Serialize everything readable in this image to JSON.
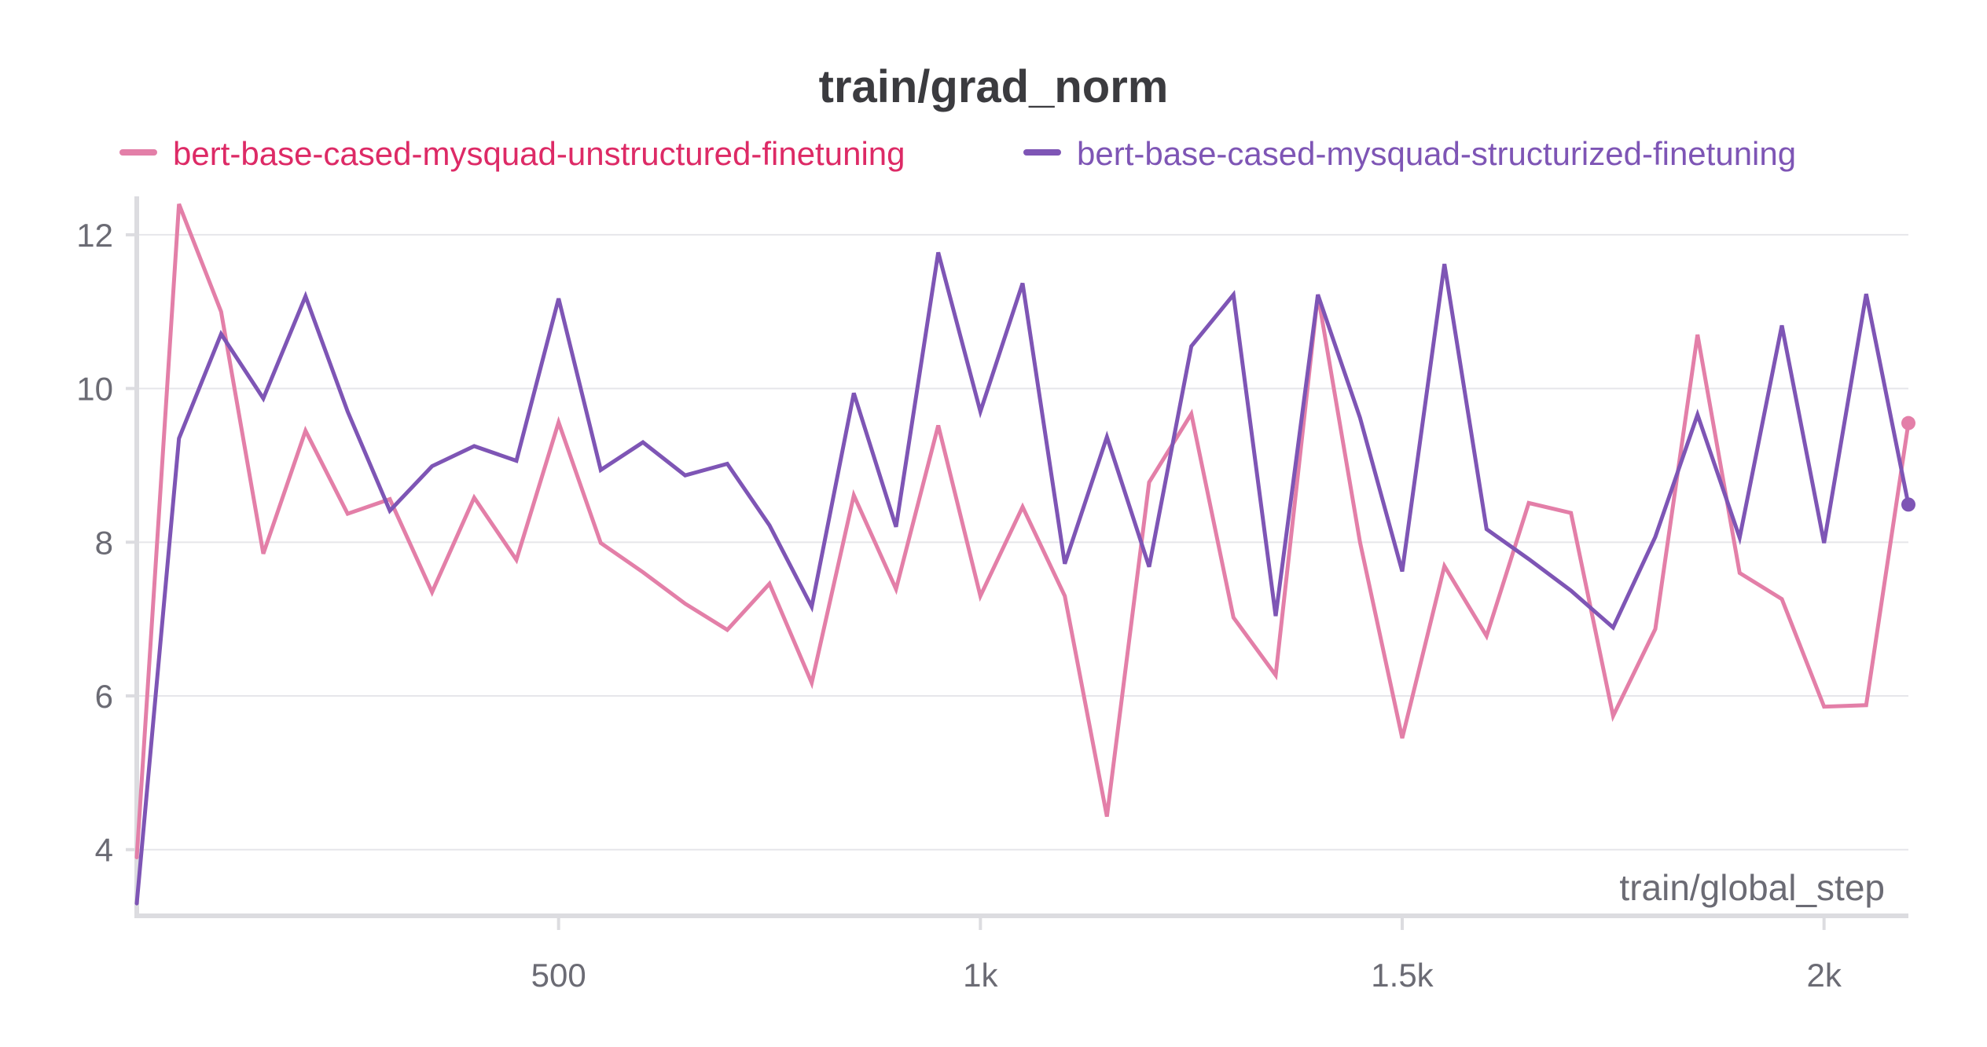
{
  "chart_data": {
    "type": "line",
    "title": "train/grad_norm",
    "xlabel": "train/global_step",
    "ylabel": "",
    "xlim": [
      0,
      2100
    ],
    "ylim": [
      3.2,
      12.5
    ],
    "x_ticks": [
      {
        "value": 500,
        "label": "500"
      },
      {
        "value": 1000,
        "label": "1k"
      },
      {
        "value": 1500,
        "label": "1.5k"
      },
      {
        "value": 2000,
        "label": "2k"
      }
    ],
    "y_ticks": [
      {
        "value": 4,
        "label": "4"
      },
      {
        "value": 6,
        "label": "6"
      },
      {
        "value": 8,
        "label": "8"
      },
      {
        "value": 10,
        "label": "10"
      },
      {
        "value": 12,
        "label": "12"
      }
    ],
    "grid": true,
    "legend_position": "top",
    "series": [
      {
        "name": "bert-base-cased-mysquad-unstructured-finetuning",
        "color": "#e37fa8",
        "legend_text_color": "#dd2a66",
        "points": [
          [
            0,
            3.9
          ],
          [
            50,
            12.4
          ],
          [
            100,
            11.0
          ],
          [
            150,
            7.85
          ],
          [
            200,
            9.45
          ],
          [
            250,
            8.37
          ],
          [
            300,
            8.56
          ],
          [
            350,
            7.35
          ],
          [
            400,
            8.58
          ],
          [
            450,
            7.77
          ],
          [
            500,
            9.56
          ],
          [
            550,
            7.99
          ],
          [
            600,
            7.61
          ],
          [
            650,
            7.2
          ],
          [
            700,
            6.86
          ],
          [
            750,
            7.46
          ],
          [
            800,
            6.17
          ],
          [
            850,
            8.61
          ],
          [
            900,
            7.39
          ],
          [
            950,
            9.52
          ],
          [
            1000,
            7.3
          ],
          [
            1050,
            8.46
          ],
          [
            1100,
            7.3
          ],
          [
            1150,
            4.43
          ],
          [
            1200,
            8.78
          ],
          [
            1250,
            9.67
          ],
          [
            1300,
            7.02
          ],
          [
            1350,
            6.27
          ],
          [
            1400,
            11.22
          ],
          [
            1450,
            8.0
          ],
          [
            1500,
            5.45
          ],
          [
            1550,
            7.69
          ],
          [
            1600,
            6.78
          ],
          [
            1650,
            8.51
          ],
          [
            1700,
            8.38
          ],
          [
            1750,
            5.74
          ],
          [
            1800,
            6.87
          ],
          [
            1850,
            10.7
          ],
          [
            1900,
            7.6
          ],
          [
            1950,
            7.26
          ],
          [
            2000,
            5.86
          ],
          [
            2050,
            5.88
          ],
          [
            2100,
            9.55
          ]
        ]
      },
      {
        "name": "bert-base-cased-mysquad-structurized-finetuning",
        "color": "#7e55b5",
        "legend_text_color": "#7e55b5",
        "points": [
          [
            0,
            3.3
          ],
          [
            50,
            9.35
          ],
          [
            100,
            10.71
          ],
          [
            150,
            9.87
          ],
          [
            200,
            11.2
          ],
          [
            250,
            9.7
          ],
          [
            300,
            8.41
          ],
          [
            350,
            8.99
          ],
          [
            400,
            9.25
          ],
          [
            450,
            9.06
          ],
          [
            500,
            11.17
          ],
          [
            550,
            8.94
          ],
          [
            600,
            9.3
          ],
          [
            650,
            8.87
          ],
          [
            700,
            9.02
          ],
          [
            750,
            8.22
          ],
          [
            800,
            7.16
          ],
          [
            850,
            9.94
          ],
          [
            900,
            8.2
          ],
          [
            950,
            11.77
          ],
          [
            1000,
            9.7
          ],
          [
            1050,
            11.37
          ],
          [
            1100,
            7.72
          ],
          [
            1150,
            9.37
          ],
          [
            1200,
            7.68
          ],
          [
            1250,
            10.55
          ],
          [
            1300,
            11.22
          ],
          [
            1350,
            7.04
          ],
          [
            1400,
            11.22
          ],
          [
            1450,
            9.62
          ],
          [
            1500,
            7.62
          ],
          [
            1550,
            11.62
          ],
          [
            1600,
            8.17
          ],
          [
            1650,
            7.78
          ],
          [
            1700,
            7.37
          ],
          [
            1750,
            6.89
          ],
          [
            1800,
            8.07
          ],
          [
            1850,
            9.66
          ],
          [
            1900,
            8.06
          ],
          [
            1950,
            10.82
          ],
          [
            2000,
            7.99
          ],
          [
            2050,
            11.23
          ],
          [
            2100,
            8.49
          ]
        ]
      }
    ]
  }
}
